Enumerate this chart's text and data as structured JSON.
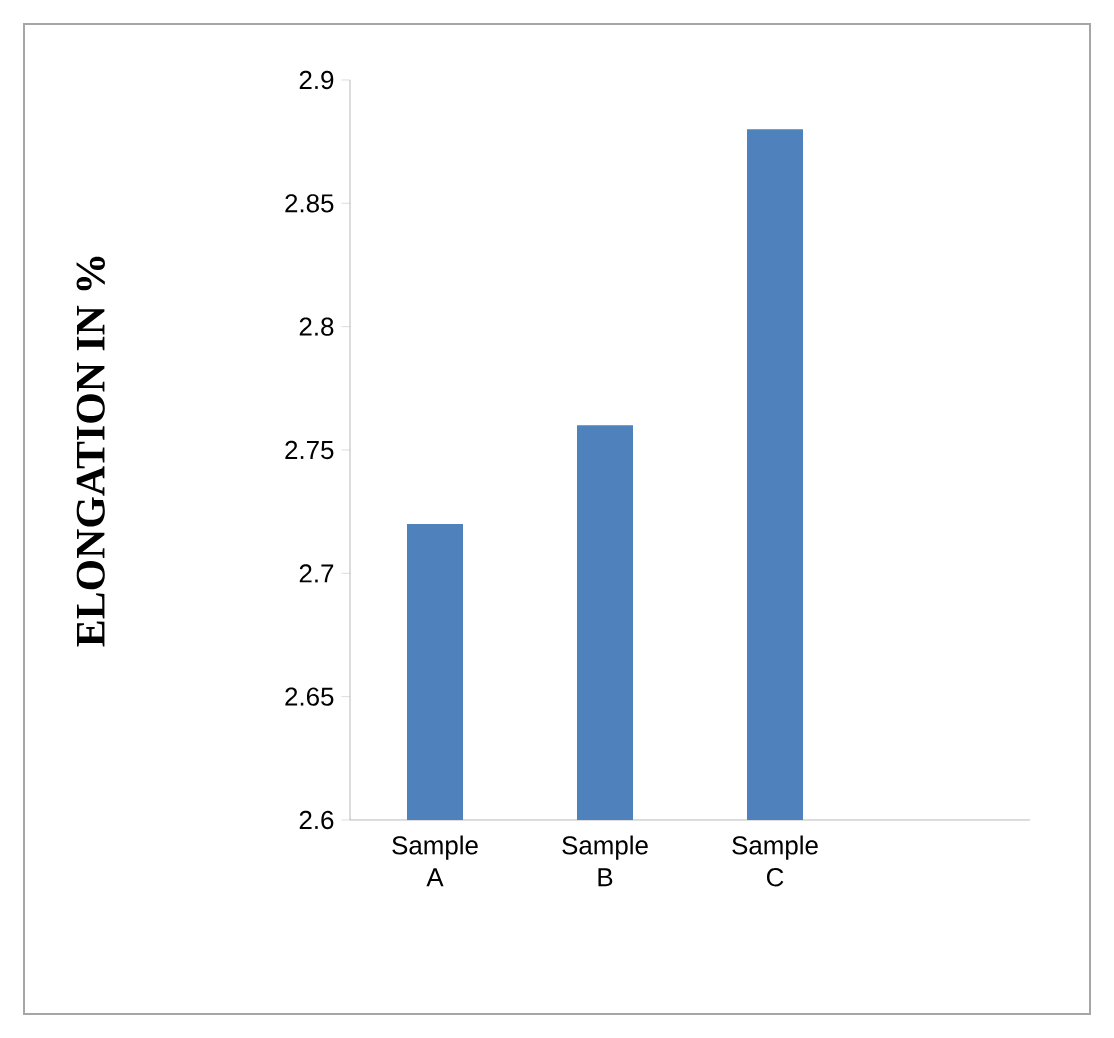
{
  "chart_data": {
    "type": "bar",
    "ylabel": "ELONGATION IN %",
    "categories": [
      "Sample A",
      "Sample B",
      "Sample C",
      null
    ],
    "values": [
      2.72,
      2.76,
      2.88,
      null
    ],
    "color": "#4f81bd",
    "ylim": [
      2.6,
      2.9
    ],
    "yticks": [
      2.6,
      2.65,
      2.7,
      2.75,
      2.8,
      2.85,
      2.9
    ],
    "grid": false
  }
}
